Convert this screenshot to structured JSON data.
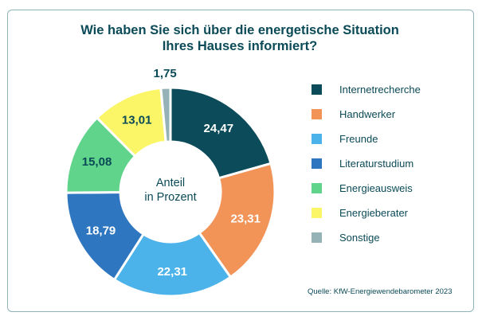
{
  "title_line1": "Wie haben Sie sich über die energetische Situation",
  "title_line2": "Ihres Hauses informiert?",
  "center_line1": "Anteil",
  "center_line2": "in Prozent",
  "source": "Quelle: KfW-Energiewendebarometer 2023",
  "chart_data": {
    "type": "pie",
    "title": "Wie haben Sie sich über die energetische Situation Ihres Hauses informiert?",
    "unit": "Anteil in Prozent",
    "donut": true,
    "legend_position": "right",
    "slices": [
      {
        "label": "Internetrecherche",
        "value": 24.47,
        "value_label": "24,47",
        "color": "#0c4b5a",
        "text_color": "#ffffff"
      },
      {
        "label": "Handwerker",
        "value": 23.31,
        "value_label": "23,31",
        "color": "#f29358",
        "text_color": "#ffffff"
      },
      {
        "label": "Freunde",
        "value": 22.31,
        "value_label": "22,31",
        "color": "#4cb3ea",
        "text_color": "#ffffff"
      },
      {
        "label": "Literaturstudium",
        "value": 18.79,
        "value_label": "18,79",
        "color": "#2f76c0",
        "text_color": "#ffffff"
      },
      {
        "label": "Energieausweis",
        "value": 15.08,
        "value_label": "15,08",
        "color": "#5fd48a",
        "text_color": "#0b4a57"
      },
      {
        "label": "Energieberater",
        "value": 13.01,
        "value_label": "13,01",
        "color": "#fbf568",
        "text_color": "#0b4a57"
      },
      {
        "label": "Sonstige",
        "value": 1.75,
        "value_label": "1,75",
        "color": "#95b3b6",
        "text_color": "#0b4a57"
      }
    ]
  }
}
